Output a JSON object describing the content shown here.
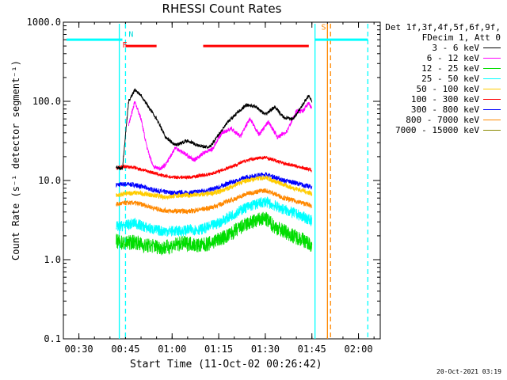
{
  "chart_data": {
    "type": "line",
    "title": "RHESSI Count Rates",
    "xlabel": "Start Time (11-Oct-02 00:26:42)",
    "ylabel": "Count Rate (s⁻¹ detector segment⁻¹)",
    "y_scale": "log",
    "ylim": [
      0.1,
      1000.0
    ],
    "x_range": [
      "00:25",
      "02:07"
    ],
    "x_tick_labels": [
      "00:30",
      "00:45",
      "01:00",
      "01:15",
      "01:30",
      "01:45",
      "02:00"
    ],
    "y_tick_labels": [
      "0.1",
      "1.0",
      "10.0",
      "100.0",
      "1000.0"
    ],
    "legend_title": [
      "Det 1f,3f,4f,5f,6f,9f,",
      "FDecim 1, Att 0"
    ],
    "legend_placement": "right",
    "series": [
      {
        "name": "3 - 6 keV",
        "color": "#000000",
        "x": [
          "00:42",
          "00:44",
          "00:46",
          "00:48",
          "00:50",
          "00:52",
          "00:55",
          "00:58",
          "01:01",
          "01:05",
          "01:08",
          "01:12",
          "01:15",
          "01:18",
          "01:21",
          "01:24",
          "01:27",
          "01:30",
          "01:33",
          "01:36",
          "01:39",
          "01:42",
          "01:44",
          "01:45"
        ],
        "y": [
          15.0,
          14.0,
          100,
          140,
          120,
          90,
          60,
          35,
          28,
          32,
          28,
          26,
          38,
          55,
          72,
          90,
          85,
          68,
          85,
          62,
          60,
          90,
          120,
          100
        ]
      },
      {
        "name": "6 - 12 keV",
        "color": "#ff00ff",
        "x": [
          "00:46",
          "00:48",
          "00:50",
          "00:52",
          "00:54",
          "00:56",
          "00:58",
          "01:01",
          "01:04",
          "01:07",
          "01:10",
          "01:13",
          "01:16",
          "01:19",
          "01:22",
          "01:25",
          "01:28",
          "01:31",
          "01:34",
          "01:37",
          "01:40",
          "01:42",
          "01:44",
          "01:45"
        ],
        "y": [
          50,
          100,
          60,
          25,
          15,
          14,
          16,
          26,
          22,
          18,
          22,
          25,
          40,
          45,
          36,
          60,
          38,
          55,
          35,
          42,
          75,
          75,
          95,
          80
        ]
      },
      {
        "name": "12 - 25 keV",
        "color": "#00dd00",
        "x": [
          "00:42",
          "00:45",
          "00:48",
          "00:51",
          "00:54",
          "00:57",
          "01:00",
          "01:03",
          "01:06",
          "01:09",
          "01:12",
          "01:15",
          "01:18",
          "01:21",
          "01:24",
          "01:27",
          "01:30",
          "01:33",
          "01:36",
          "01:39",
          "01:42",
          "01:45"
        ],
        "y": [
          1.7,
          1.6,
          1.7,
          1.5,
          1.5,
          1.4,
          1.5,
          1.6,
          1.6,
          1.5,
          1.6,
          1.8,
          2.0,
          2.4,
          2.8,
          3.1,
          3.3,
          2.6,
          2.3,
          2.0,
          1.8,
          1.5
        ]
      },
      {
        "name": "25 - 50 keV",
        "color": "#00ffff",
        "x": [
          "00:42",
          "00:45",
          "00:48",
          "00:51",
          "00:54",
          "00:57",
          "01:00",
          "01:03",
          "01:06",
          "01:09",
          "01:12",
          "01:15",
          "01:18",
          "01:21",
          "01:24",
          "01:27",
          "01:30",
          "01:33",
          "01:36",
          "01:39",
          "01:42",
          "01:45"
        ],
        "y": [
          2.6,
          2.7,
          2.9,
          2.6,
          2.4,
          2.3,
          2.3,
          2.3,
          2.4,
          2.4,
          2.6,
          2.9,
          3.4,
          4.0,
          4.6,
          5.0,
          5.4,
          4.8,
          4.3,
          3.9,
          3.5,
          3.1
        ]
      },
      {
        "name": "50 - 100 keV",
        "color": "#ffcc00",
        "x": [
          "00:42",
          "00:45",
          "00:48",
          "00:51",
          "00:54",
          "00:57",
          "01:00",
          "01:03",
          "01:06",
          "01:09",
          "01:12",
          "01:15",
          "01:18",
          "01:21",
          "01:24",
          "01:27",
          "01:30",
          "01:33",
          "01:36",
          "01:39",
          "01:42",
          "01:45"
        ],
        "y": [
          6.5,
          6.8,
          7.0,
          6.8,
          6.5,
          6.2,
          6.3,
          6.5,
          6.5,
          6.6,
          6.8,
          7.2,
          8.0,
          9.0,
          10.0,
          10.5,
          11.0,
          9.8,
          8.8,
          8.0,
          7.5,
          6.8
        ]
      },
      {
        "name": "100 - 300 keV",
        "color": "#ff0000",
        "x": [
          "00:42",
          "00:45",
          "00:48",
          "00:51",
          "00:54",
          "00:57",
          "01:00",
          "01:03",
          "01:06",
          "01:09",
          "01:12",
          "01:15",
          "01:18",
          "01:21",
          "01:24",
          "01:27",
          "01:30",
          "01:33",
          "01:36",
          "01:39",
          "01:42",
          "01:45"
        ],
        "y": [
          14.5,
          15.0,
          14.5,
          13.5,
          12.5,
          11.5,
          11.0,
          11.0,
          11.0,
          11.5,
          12.0,
          13.0,
          14.5,
          16.0,
          18.0,
          19.0,
          19.5,
          18.0,
          16.5,
          15.5,
          14.5,
          13.5
        ]
      },
      {
        "name": "300 - 800 keV",
        "color": "#0000ff",
        "x": [
          "00:42",
          "00:45",
          "00:48",
          "00:51",
          "00:54",
          "00:57",
          "01:00",
          "01:03",
          "01:06",
          "01:09",
          "01:12",
          "01:15",
          "01:18",
          "01:21",
          "01:24",
          "01:27",
          "01:30",
          "01:33",
          "01:36",
          "01:39",
          "01:42",
          "01:45"
        ],
        "y": [
          8.8,
          9.0,
          8.8,
          8.2,
          7.6,
          7.2,
          7.0,
          7.0,
          7.0,
          7.3,
          7.6,
          8.2,
          9.2,
          10.0,
          11.0,
          11.5,
          12.0,
          11.0,
          10.0,
          9.5,
          8.8,
          8.2
        ]
      },
      {
        "name": "800 - 7000 keV",
        "color": "#ff8800",
        "x": [
          "00:42",
          "00:45",
          "00:48",
          "00:51",
          "00:54",
          "00:57",
          "01:00",
          "01:03",
          "01:06",
          "01:09",
          "01:12",
          "01:15",
          "01:18",
          "01:21",
          "01:24",
          "01:27",
          "01:30",
          "01:33",
          "01:36",
          "01:39",
          "01:42",
          "01:45"
        ],
        "y": [
          5.0,
          5.2,
          5.2,
          4.9,
          4.5,
          4.2,
          4.1,
          4.1,
          4.1,
          4.3,
          4.5,
          4.9,
          5.5,
          6.0,
          6.8,
          7.2,
          7.5,
          6.8,
          6.0,
          5.6,
          5.2,
          4.8
        ]
      },
      {
        "name": "7000 - 15000 keV",
        "color": "#888800",
        "x": [],
        "y": []
      }
    ],
    "annotations": [
      {
        "text": "N",
        "color": "#00dddd"
      },
      {
        "text": "F",
        "color": "#ff0000"
      },
      {
        "text": "S",
        "color": "#ff8800"
      }
    ],
    "bars": [
      {
        "color": "#00ffff",
        "x_start": "00:26",
        "x_end": "00:44",
        "y": 600
      },
      {
        "color": "#00ffff",
        "x_start": "01:46",
        "x_end": "02:03",
        "y": 600
      },
      {
        "color": "#ff0000",
        "x_start": "00:45",
        "x_end": "00:55",
        "y": 500
      },
      {
        "color": "#ff0000",
        "x_start": "01:10",
        "x_end": "01:44",
        "y": 500
      }
    ],
    "vertical_lines": [
      {
        "x": "00:43",
        "color": "#00ffff",
        "style": "solid"
      },
      {
        "x": "00:45",
        "color": "#00ffff",
        "style": "dashed"
      },
      {
        "x": "01:46",
        "color": "#00ffff",
        "style": "solid"
      },
      {
        "x": "01:50",
        "color": "#ff8800",
        "style": "solid"
      },
      {
        "x": "01:51",
        "color": "#ff8800",
        "style": "dashed"
      },
      {
        "x": "02:03",
        "color": "#00ffff",
        "style": "dashed"
      }
    ]
  },
  "footer_text": "20-Oct-2021 03:19"
}
